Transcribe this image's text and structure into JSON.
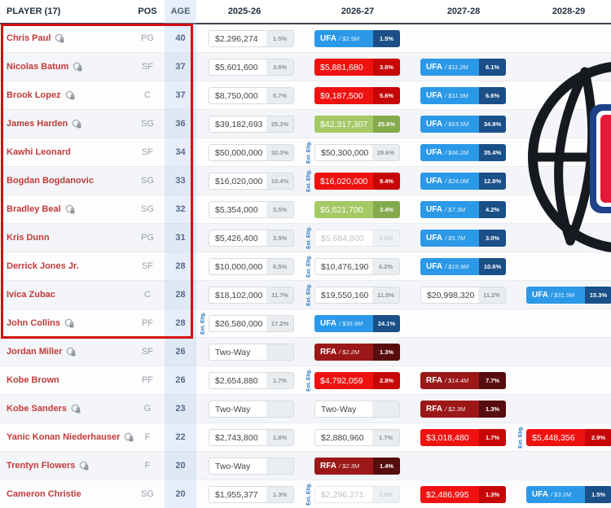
{
  "header": {
    "player": "PLAYER (17)",
    "pos": "POS",
    "age": "AGE",
    "seasons": [
      "2025-26",
      "2026-27",
      "2027-28",
      "2028-29"
    ]
  },
  "labels": {
    "ext_elig": "Ext. Elig.",
    "two_way": "Two-Way"
  },
  "colors": {
    "player_name": "#c13a3a",
    "header_text": "#223040",
    "focus_border": "#d20f0f",
    "badge_red": "#f01111",
    "badge_red_dark": "#c70707",
    "badge_green": "#a4c965",
    "badge_green_dark": "#84aa4c",
    "badge_blue_ufa": "#2b99e8",
    "badge_blue_dark": "#1a4f87",
    "badge_darkred_rfa": "#9c1818",
    "badge_darkred_dark": "#570d0d",
    "ext_elig_text": "#2070bf",
    "logo_blue": "#1d428a",
    "logo_red": "#e51937",
    "logo_black": "#16191f"
  },
  "players": [
    {
      "name": "Chris Paul",
      "icon": true,
      "pos": "PG",
      "age": "40",
      "cells": [
        {
          "si": 0,
          "kind": "salary",
          "style": "white",
          "amount": "$2,296,274",
          "pct": "1.5%"
        },
        {
          "si": 1,
          "kind": "fa",
          "style": "blue",
          "fa": "UFA",
          "cap": "$2.5M",
          "pct": "1.5%"
        }
      ]
    },
    {
      "name": "Nicolas Batum",
      "icon": true,
      "pos": "SF",
      "age": "37",
      "cells": [
        {
          "si": 0,
          "kind": "salary",
          "style": "white",
          "amount": "$5,601,600",
          "pct": "3.6%"
        },
        {
          "si": 1,
          "kind": "salary",
          "style": "red",
          "amount": "$5,881,680",
          "pct": "3.6%"
        },
        {
          "si": 2,
          "kind": "fa",
          "style": "blue",
          "fa": "UFA",
          "cap": "$11.2M",
          "pct": "6.1%"
        }
      ]
    },
    {
      "name": "Brook Lopez",
      "icon": true,
      "pos": "C",
      "age": "37",
      "cells": [
        {
          "si": 0,
          "kind": "salary",
          "style": "white",
          "amount": "$8,750,000",
          "pct": "5.7%"
        },
        {
          "si": 1,
          "kind": "salary",
          "style": "red",
          "amount": "$9,187,500",
          "pct": "5.6%"
        },
        {
          "si": 2,
          "kind": "fa",
          "style": "blue",
          "fa": "UFA",
          "cap": "$11.9M",
          "pct": "6.6%"
        }
      ]
    },
    {
      "name": "James Harden",
      "icon": true,
      "pos": "SG",
      "age": "36",
      "cells": [
        {
          "si": 0,
          "kind": "salary",
          "style": "white",
          "amount": "$39,182,693",
          "pct": "25.3%"
        },
        {
          "si": 1,
          "kind": "salary",
          "style": "green",
          "amount": "$42,317,307",
          "pct": "25.6%"
        },
        {
          "si": 2,
          "kind": "fa",
          "style": "blue",
          "fa": "UFA",
          "cap": "$63.5M",
          "pct": "34.9%"
        }
      ]
    },
    {
      "name": "Kawhi Leonard",
      "icon": false,
      "pos": "SF",
      "age": "34",
      "cells": [
        {
          "si": 0,
          "kind": "salary",
          "style": "white",
          "amount": "$50,000,000",
          "pct": "32.3%"
        },
        {
          "si": 1,
          "kind": "salary",
          "style": "white",
          "amount": "$50,300,000",
          "pct": "29.6%",
          "ext": true
        },
        {
          "si": 2,
          "kind": "fa",
          "style": "blue",
          "fa": "UFA",
          "cap": "$66.2M",
          "pct": "35.4%"
        }
      ]
    },
    {
      "name": "Bogdan Bogdanovic",
      "icon": false,
      "pos": "SG",
      "age": "33",
      "cells": [
        {
          "si": 0,
          "kind": "salary",
          "style": "white",
          "amount": "$16,020,000",
          "pct": "10.4%"
        },
        {
          "si": 1,
          "kind": "salary",
          "style": "red",
          "amount": "$16,020,000",
          "pct": "9.4%",
          "ext": true
        },
        {
          "si": 2,
          "kind": "fa",
          "style": "blue",
          "fa": "UFA",
          "cap": "$24.0M",
          "pct": "12.8%"
        }
      ]
    },
    {
      "name": "Bradley Beal",
      "icon": true,
      "pos": "SG",
      "age": "32",
      "cells": [
        {
          "si": 0,
          "kind": "salary",
          "style": "white",
          "amount": "$5,354,000",
          "pct": "3.5%"
        },
        {
          "si": 1,
          "kind": "salary",
          "style": "green",
          "amount": "$5,621,700",
          "pct": "3.4%"
        },
        {
          "si": 2,
          "kind": "fa",
          "style": "blue",
          "fa": "UFA",
          "cap": "$7.3M",
          "pct": "4.2%"
        }
      ]
    },
    {
      "name": "Kris Dunn",
      "icon": false,
      "pos": "PG",
      "age": "31",
      "cells": [
        {
          "si": 0,
          "kind": "salary",
          "style": "white",
          "amount": "$5,426,400",
          "pct": "3.5%"
        },
        {
          "si": 1,
          "kind": "salary",
          "style": "muted",
          "amount": "$5,684,800",
          "pct": "3.3%",
          "ext": true
        },
        {
          "si": 2,
          "kind": "fa",
          "style": "blue",
          "fa": "UFA",
          "cap": "$5.7M",
          "pct": "3.0%"
        }
      ]
    },
    {
      "name": "Derrick Jones Jr.",
      "icon": false,
      "pos": "SF",
      "age": "28",
      "cells": [
        {
          "si": 0,
          "kind": "salary",
          "style": "white",
          "amount": "$10,000,000",
          "pct": "6.5%"
        },
        {
          "si": 1,
          "kind": "salary",
          "style": "white",
          "amount": "$10,476,190",
          "pct": "6.2%",
          "ext": true
        },
        {
          "si": 2,
          "kind": "fa",
          "style": "blue",
          "fa": "UFA",
          "cap": "$19.9M",
          "pct": "10.6%"
        }
      ]
    },
    {
      "name": "Ivica Zubac",
      "icon": false,
      "pos": "C",
      "age": "28",
      "cells": [
        {
          "si": 0,
          "kind": "salary",
          "style": "white",
          "amount": "$18,102,000",
          "pct": "11.7%"
        },
        {
          "si": 1,
          "kind": "salary",
          "style": "white",
          "amount": "$19,550,160",
          "pct": "11.5%",
          "ext": true
        },
        {
          "si": 2,
          "kind": "salary",
          "style": "white",
          "amount": "$20,998,320",
          "pct": "11.2%"
        },
        {
          "si": 3,
          "kind": "fa",
          "style": "blue",
          "fa": "UFA",
          "cap": "$31.5M",
          "pct": "15.3%"
        }
      ]
    },
    {
      "name": "John Collins",
      "icon": true,
      "pos": "PF",
      "age": "28",
      "cells": [
        {
          "si": 0,
          "kind": "salary",
          "style": "white",
          "amount": "$26,580,000",
          "pct": "17.2%",
          "ext": true
        },
        {
          "si": 1,
          "kind": "fa",
          "style": "blue",
          "fa": "UFA",
          "cap": "$39.9M",
          "pct": "24.1%"
        }
      ]
    },
    {
      "name": "Jordan Miller",
      "icon": true,
      "pos": "SF",
      "age": "26",
      "cells": [
        {
          "si": 0,
          "kind": "twoway",
          "style": "white",
          "amount": "Two-Way",
          "pct": ""
        },
        {
          "si": 1,
          "kind": "fa",
          "style": "darkred",
          "fa": "RFA",
          "cap": "$2.2M",
          "pct": "1.3%"
        }
      ]
    },
    {
      "name": "Kobe Brown",
      "icon": false,
      "pos": "PF",
      "age": "26",
      "cells": [
        {
          "si": 0,
          "kind": "salary",
          "style": "white",
          "amount": "$2,654,880",
          "pct": "1.7%"
        },
        {
          "si": 1,
          "kind": "salary",
          "style": "red",
          "amount": "$4,792,059",
          "pct": "2.8%",
          "ext": true
        },
        {
          "si": 2,
          "kind": "fa",
          "style": "darkred",
          "fa": "RFA",
          "cap": "$14.4M",
          "pct": "7.7%"
        }
      ]
    },
    {
      "name": "Kobe Sanders",
      "icon": true,
      "pos": "G",
      "age": "23",
      "cells": [
        {
          "si": 0,
          "kind": "twoway",
          "style": "white",
          "amount": "Two-Way",
          "pct": ""
        },
        {
          "si": 1,
          "kind": "twoway",
          "style": "white",
          "amount": "Two-Way",
          "pct": ""
        },
        {
          "si": 2,
          "kind": "fa",
          "style": "darkred",
          "fa": "RFA",
          "cap": "$2.3M",
          "pct": "1.3%"
        }
      ]
    },
    {
      "name": "Yanic Konan Niederhauser",
      "icon": true,
      "pos": "F",
      "age": "22",
      "cells": [
        {
          "si": 0,
          "kind": "salary",
          "style": "white",
          "amount": "$2,743,800",
          "pct": "1.8%"
        },
        {
          "si": 1,
          "kind": "salary",
          "style": "white",
          "amount": "$2,880,960",
          "pct": "1.7%"
        },
        {
          "si": 2,
          "kind": "salary",
          "style": "red",
          "amount": "$3,018,480",
          "pct": "1.7%"
        },
        {
          "si": 3,
          "kind": "salary",
          "style": "red",
          "amount": "$5,448,356",
          "pct": "2.9%",
          "ext": true
        }
      ]
    },
    {
      "name": "Trentyn Flowers",
      "icon": true,
      "pos": "F",
      "age": "20",
      "cells": [
        {
          "si": 0,
          "kind": "twoway",
          "style": "white",
          "amount": "Two-Way",
          "pct": ""
        },
        {
          "si": 1,
          "kind": "fa",
          "style": "darkred",
          "fa": "RFA",
          "cap": "$2.3M",
          "pct": "1.4%"
        }
      ]
    },
    {
      "name": "Cameron Christie",
      "icon": false,
      "pos": "SG",
      "age": "20",
      "cells": [
        {
          "si": 0,
          "kind": "salary",
          "style": "white",
          "amount": "$1,955,377",
          "pct": "1.3%"
        },
        {
          "si": 1,
          "kind": "salary",
          "style": "muted",
          "amount": "$2,296,271",
          "pct": "1.3%",
          "ext": true
        },
        {
          "si": 2,
          "kind": "salary",
          "style": "red",
          "amount": "$2,486,995",
          "pct": "1.3%"
        },
        {
          "si": 3,
          "kind": "fa",
          "style": "blue",
          "fa": "UFA",
          "cap": "$3.1M",
          "pct": "1.5%"
        }
      ]
    }
  ]
}
